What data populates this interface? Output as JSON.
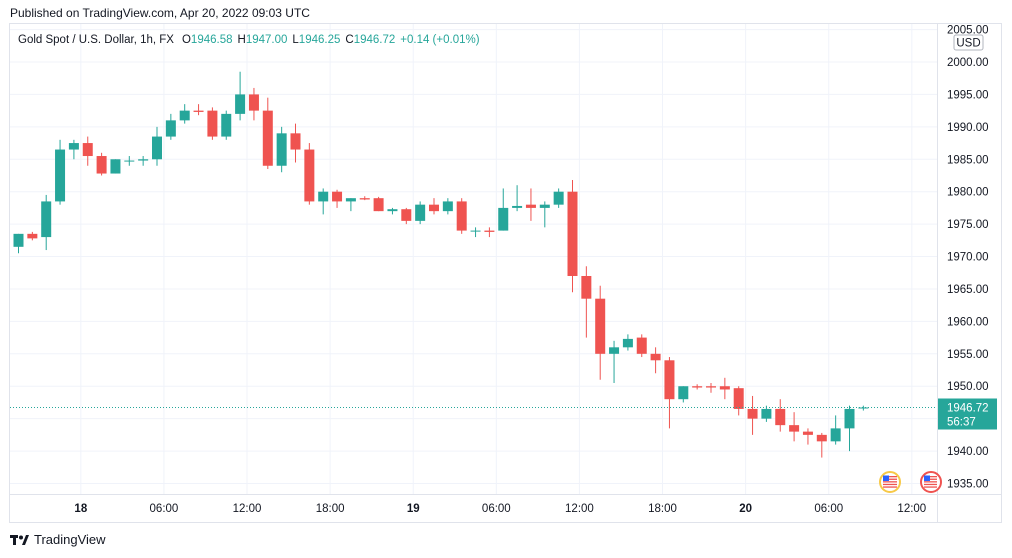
{
  "published": "Published on TradingView.com, Apr 20, 2022 09:03 UTC",
  "legend": {
    "symbol": "Gold Spot / U.S. Dollar, 1h, FX",
    "open_label": "O",
    "open": "1946.58",
    "high_label": "H",
    "high": "1947.00",
    "low_label": "L",
    "low": "1946.25",
    "close_label": "C",
    "close": "1946.72",
    "change": "+0.14 (+0.01%)"
  },
  "currency": "USD",
  "price_tag": {
    "price": "1946.72",
    "countdown": "56:37"
  },
  "footer_brand": "TradingView",
  "colors": {
    "up": "#26a69a",
    "down": "#ef5350",
    "grid": "#f0f3fa",
    "axis": "#131722"
  },
  "chart_data": {
    "type": "candlestick",
    "title": "Gold Spot / U.S. Dollar, 1h, FX",
    "ylim": [
      1933,
      2006
    ],
    "y_ticks": [
      "1935.00",
      "1940.00",
      "1945.00",
      "1950.00",
      "1955.00",
      "1960.00",
      "1965.00",
      "1970.00",
      "1975.00",
      "1980.00",
      "1985.00",
      "1990.00",
      "1995.00",
      "2000.00",
      "2005.00"
    ],
    "x_ticks": [
      {
        "label": "18",
        "bar": 4.5
      },
      {
        "label": "06:00",
        "bar": 10.5
      },
      {
        "label": "12:00",
        "bar": 16.5
      },
      {
        "label": "18:00",
        "bar": 22.5
      },
      {
        "label": "19",
        "bar": 28.5
      },
      {
        "label": "06:00",
        "bar": 34.5
      },
      {
        "label": "12:00",
        "bar": 40.5
      },
      {
        "label": "18:00",
        "bar": 46.5
      },
      {
        "label": "20",
        "bar": 52.5
      },
      {
        "label": "06:00",
        "bar": 58.5
      },
      {
        "label": "12:00",
        "bar": 64.5
      }
    ],
    "last_price": 1946.72,
    "candles": [
      {
        "o": 1971.5,
        "h": 1973.5,
        "l": 1970.5,
        "c": 1973.5
      },
      {
        "o": 1973.5,
        "h": 1973.8,
        "l": 1972.5,
        "c": 1972.8
      },
      {
        "o": 1973.0,
        "h": 1979.5,
        "l": 1971.0,
        "c": 1978.5
      },
      {
        "o": 1978.5,
        "h": 1988.0,
        "l": 1978.0,
        "c": 1986.5
      },
      {
        "o": 1986.5,
        "h": 1988.0,
        "l": 1985.0,
        "c": 1987.5
      },
      {
        "o": 1987.5,
        "h": 1988.5,
        "l": 1984.0,
        "c": 1985.5
      },
      {
        "o": 1985.5,
        "h": 1986.0,
        "l": 1982.5,
        "c": 1982.8
      },
      {
        "o": 1982.8,
        "h": 1985.0,
        "l": 1982.8,
        "c": 1985.0
      },
      {
        "o": 1984.7,
        "h": 1985.5,
        "l": 1984.0,
        "c": 1984.8
      },
      {
        "o": 1984.8,
        "h": 1985.5,
        "l": 1984.0,
        "c": 1985.0
      },
      {
        "o": 1985.0,
        "h": 1990.0,
        "l": 1984.0,
        "c": 1988.5
      },
      {
        "o": 1988.5,
        "h": 1992.0,
        "l": 1988.0,
        "c": 1991.0
      },
      {
        "o": 1991.0,
        "h": 1993.5,
        "l": 1990.5,
        "c": 1992.5
      },
      {
        "o": 1992.5,
        "h": 1993.5,
        "l": 1991.8,
        "c": 1992.3
      },
      {
        "o": 1992.5,
        "h": 1993.0,
        "l": 1988.0,
        "c": 1988.5
      },
      {
        "o": 1988.5,
        "h": 1992.5,
        "l": 1988.0,
        "c": 1992.0
      },
      {
        "o": 1992.0,
        "h": 1998.5,
        "l": 1991.0,
        "c": 1995.0
      },
      {
        "o": 1995.0,
        "h": 1996.0,
        "l": 1991.0,
        "c": 1992.5
      },
      {
        "o": 1992.5,
        "h": 1994.5,
        "l": 1983.5,
        "c": 1984.0
      },
      {
        "o": 1984.0,
        "h": 1990.0,
        "l": 1983.0,
        "c": 1989.0
      },
      {
        "o": 1989.0,
        "h": 1990.5,
        "l": 1984.5,
        "c": 1986.5
      },
      {
        "o": 1986.5,
        "h": 1987.5,
        "l": 1978.0,
        "c": 1978.5
      },
      {
        "o": 1978.5,
        "h": 1980.5,
        "l": 1976.5,
        "c": 1980.0
      },
      {
        "o": 1980.0,
        "h": 1980.3,
        "l": 1977.5,
        "c": 1978.5
      },
      {
        "o": 1978.5,
        "h": 1979.0,
        "l": 1977.0,
        "c": 1979.0
      },
      {
        "o": 1979.0,
        "h": 1979.3,
        "l": 1978.7,
        "c": 1978.8
      },
      {
        "o": 1979.0,
        "h": 1979.2,
        "l": 1977.0,
        "c": 1977.0
      },
      {
        "o": 1977.0,
        "h": 1977.5,
        "l": 1976.5,
        "c": 1977.3
      },
      {
        "o": 1977.3,
        "h": 1977.5,
        "l": 1975.0,
        "c": 1975.5
      },
      {
        "o": 1975.5,
        "h": 1978.5,
        "l": 1975.0,
        "c": 1978.0
      },
      {
        "o": 1978.0,
        "h": 1979.0,
        "l": 1976.5,
        "c": 1977.0
      },
      {
        "o": 1977.0,
        "h": 1979.0,
        "l": 1976.5,
        "c": 1978.5
      },
      {
        "o": 1978.5,
        "h": 1979.0,
        "l": 1973.5,
        "c": 1974.0
      },
      {
        "o": 1974.0,
        "h": 1974.5,
        "l": 1973.0,
        "c": 1974.0
      },
      {
        "o": 1974.0,
        "h": 1974.5,
        "l": 1973.0,
        "c": 1973.8
      },
      {
        "o": 1974.0,
        "h": 1980.5,
        "l": 1974.0,
        "c": 1977.5
      },
      {
        "o": 1977.5,
        "h": 1981.0,
        "l": 1977.0,
        "c": 1977.8
      },
      {
        "o": 1978.0,
        "h": 1980.5,
        "l": 1975.5,
        "c": 1977.5
      },
      {
        "o": 1977.5,
        "h": 1978.5,
        "l": 1974.5,
        "c": 1978.0
      },
      {
        "o": 1978.0,
        "h": 1980.5,
        "l": 1977.5,
        "c": 1980.0
      },
      {
        "o": 1980.0,
        "h": 1981.8,
        "l": 1964.5,
        "c": 1967.0
      },
      {
        "o": 1967.0,
        "h": 1968.5,
        "l": 1957.5,
        "c": 1963.5
      },
      {
        "o": 1963.5,
        "h": 1965.5,
        "l": 1951.0,
        "c": 1955.0
      },
      {
        "o": 1955.0,
        "h": 1957.0,
        "l": 1950.5,
        "c": 1956.0
      },
      {
        "o": 1956.0,
        "h": 1958.0,
        "l": 1955.5,
        "c": 1957.3
      },
      {
        "o": 1957.5,
        "h": 1958.0,
        "l": 1954.5,
        "c": 1955.0
      },
      {
        "o": 1955.0,
        "h": 1956.0,
        "l": 1952.0,
        "c": 1954.0
      },
      {
        "o": 1954.0,
        "h": 1954.5,
        "l": 1943.5,
        "c": 1948.0
      },
      {
        "o": 1948.0,
        "h": 1950.0,
        "l": 1947.5,
        "c": 1950.0
      },
      {
        "o": 1950.0,
        "h": 1950.3,
        "l": 1949.5,
        "c": 1949.8
      },
      {
        "o": 1950.0,
        "h": 1950.5,
        "l": 1949.0,
        "c": 1949.8
      },
      {
        "o": 1950.0,
        "h": 1951.3,
        "l": 1948.0,
        "c": 1949.5
      },
      {
        "o": 1949.7,
        "h": 1950.0,
        "l": 1945.5,
        "c": 1946.5
      },
      {
        "o": 1946.5,
        "h": 1948.5,
        "l": 1942.5,
        "c": 1945.0
      },
      {
        "o": 1945.0,
        "h": 1947.0,
        "l": 1944.5,
        "c": 1946.5
      },
      {
        "o": 1946.5,
        "h": 1948.0,
        "l": 1943.0,
        "c": 1944.0
      },
      {
        "o": 1944.0,
        "h": 1946.0,
        "l": 1941.5,
        "c": 1943.0
      },
      {
        "o": 1943.0,
        "h": 1943.5,
        "l": 1941.0,
        "c": 1942.5
      },
      {
        "o": 1942.5,
        "h": 1942.8,
        "l": 1939.0,
        "c": 1941.5
      },
      {
        "o": 1941.5,
        "h": 1945.5,
        "l": 1941.0,
        "c": 1943.5
      },
      {
        "o": 1943.5,
        "h": 1947.0,
        "l": 1940.0,
        "c": 1946.5
      },
      {
        "o": 1946.58,
        "h": 1947.0,
        "l": 1946.25,
        "c": 1946.72
      }
    ]
  }
}
